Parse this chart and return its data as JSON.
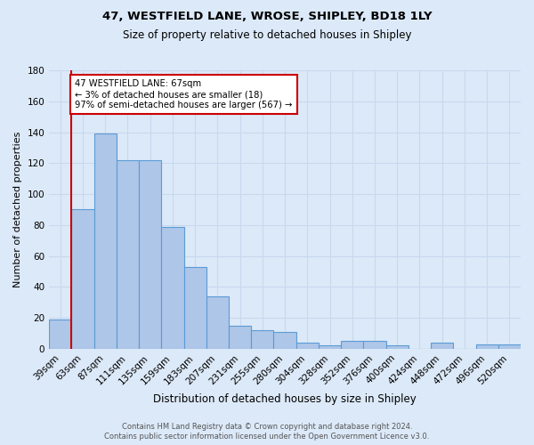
{
  "title": "47, WESTFIELD LANE, WROSE, SHIPLEY, BD18 1LY",
  "subtitle": "Size of property relative to detached houses in Shipley",
  "xlabel": "Distribution of detached houses by size in Shipley",
  "ylabel": "Number of detached properties",
  "bin_labels": [
    "39sqm",
    "63sqm",
    "87sqm",
    "111sqm",
    "135sqm",
    "159sqm",
    "183sqm",
    "207sqm",
    "231sqm",
    "255sqm",
    "280sqm",
    "304sqm",
    "328sqm",
    "352sqm",
    "376sqm",
    "400sqm",
    "424sqm",
    "448sqm",
    "472sqm",
    "496sqm",
    "520sqm"
  ],
  "bar_values": [
    19,
    90,
    139,
    122,
    122,
    79,
    53,
    34,
    15,
    12,
    11,
    4,
    2,
    5,
    5,
    2,
    0,
    4,
    0,
    3,
    3
  ],
  "bar_color": "#aec6e8",
  "bar_edge_color": "#5b9bd5",
  "vline_x_index": 1,
  "vline_color": "#cc0000",
  "annotation_text": "47 WESTFIELD LANE: 67sqm\n← 3% of detached houses are smaller (18)\n97% of semi-detached houses are larger (567) →",
  "annotation_box_color": "#ffffff",
  "annotation_box_edge_color": "#cc0000",
  "ylim": [
    0,
    180
  ],
  "yticks": [
    0,
    20,
    40,
    60,
    80,
    100,
    120,
    140,
    160,
    180
  ],
  "footer1": "Contains HM Land Registry data © Crown copyright and database right 2024.",
  "footer2": "Contains public sector information licensed under the Open Government Licence v3.0.",
  "bg_color": "#dce9f8",
  "plot_bg_color": "#dce9f8",
  "title_fontsize": 9.5,
  "subtitle_fontsize": 8.5,
  "xlabel_fontsize": 8.5,
  "ylabel_fontsize": 8.0,
  "tick_fontsize": 7.5,
  "footer_fontsize": 6.0
}
